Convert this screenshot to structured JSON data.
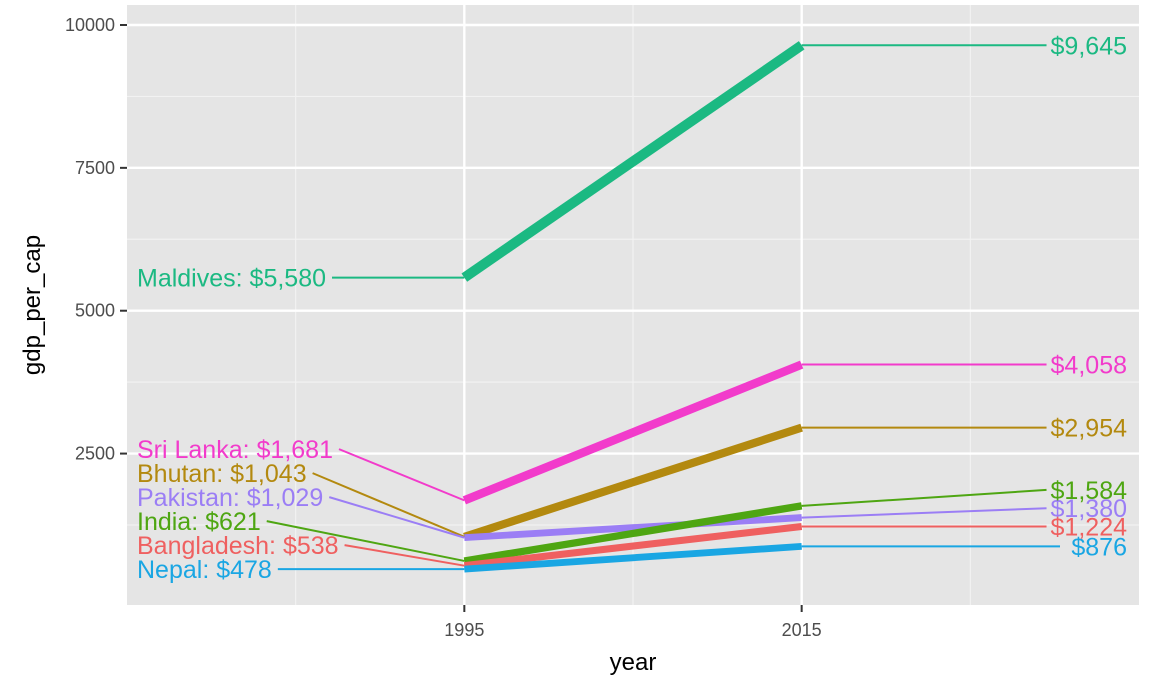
{
  "chart_data": {
    "type": "line",
    "xlabel": "year",
    "ylabel": "gdp_per_cap",
    "x": [
      1995,
      2015
    ],
    "x_ticks": [
      {
        "value": 1995,
        "label": "1995"
      },
      {
        "value": 2015,
        "label": "2015"
      }
    ],
    "y_ticks": [
      {
        "value": 2500,
        "label": "2500"
      },
      {
        "value": 5000,
        "label": "5000"
      },
      {
        "value": 7500,
        "label": "7500"
      },
      {
        "value": 10000,
        "label": "10000"
      }
    ],
    "xlim": [
      1975,
      2035
    ],
    "ylim": [
      -150,
      10350
    ],
    "grid": true,
    "legend": "none",
    "background": "#e5e5e5",
    "series": [
      {
        "name": "Maldives",
        "values": [
          5580,
          9645
        ],
        "color": "#1bb982",
        "left_label": "Maldives: $5,580",
        "right_label": "$9,645"
      },
      {
        "name": "Sri Lanka",
        "values": [
          1681,
          4058
        ],
        "color": "#f23bcb",
        "left_label": "Sri Lanka: $1,681",
        "right_label": "$4,058"
      },
      {
        "name": "Bhutan",
        "values": [
          1043,
          2954
        ],
        "color": "#b3890f",
        "left_label": "Bhutan: $1,043",
        "right_label": "$2,954"
      },
      {
        "name": "Pakistan",
        "values": [
          1029,
          1380
        ],
        "color": "#9b7ef5",
        "left_label": "Pakistan: $1,029",
        "right_label": "$1,380"
      },
      {
        "name": "India",
        "values": [
          621,
          1584
        ],
        "color": "#4ea612",
        "left_label": "India: $621",
        "right_label": "$1,584"
      },
      {
        "name": "Bangladesh",
        "values": [
          538,
          1224
        ],
        "color": "#ef6060",
        "left_label": "Bangladesh: $538",
        "right_label": "$1,224"
      },
      {
        "name": "Nepal",
        "values": [
          478,
          876
        ],
        "color": "#1aa6e3",
        "left_label": "Nepal: $478",
        "right_label": "$876"
      }
    ]
  }
}
